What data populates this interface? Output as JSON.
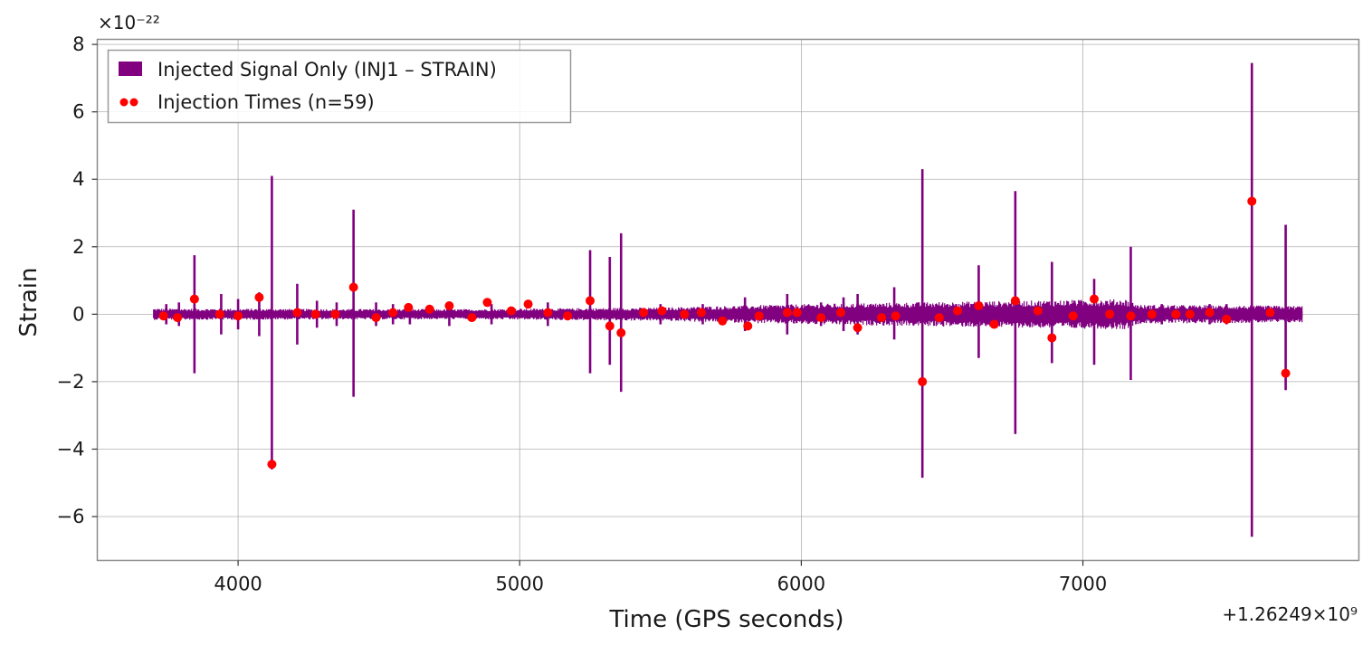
{
  "chart_data": {
    "type": "line",
    "xlabel": "Time (GPS seconds)",
    "ylabel": "Strain",
    "x_offset_label": "+1.26249×10⁹",
    "y_scale_label": "×10⁻²²",
    "xlim": [
      3500,
      7980
    ],
    "ylim": [
      -7.3,
      8.15
    ],
    "x_ticks": [
      4000,
      5000,
      6000,
      7000
    ],
    "x_tick_labels": [
      "4000",
      "5000",
      "6000",
      "7000"
    ],
    "y_ticks": [
      -6,
      -4,
      -2,
      0,
      2,
      4,
      6,
      8
    ],
    "y_tick_labels": [
      "−6",
      "−4",
      "−2",
      "0",
      "2",
      "4",
      "6",
      "8"
    ],
    "grid": true,
    "legend": {
      "placement": "top-left",
      "entries": [
        "Injected Signal Only (INJ1 – STRAIN)",
        "Injection Times (n=59)"
      ]
    },
    "colors": {
      "signal": "#800080",
      "points": "#ff0000"
    },
    "series": [
      {
        "name": "Injected Signal Only (INJ1 – STRAIN)",
        "kind": "band",
        "x_start": 3700,
        "x_end": 7780,
        "band_envelope": [
          [
            3700,
            0.17
          ],
          [
            4800,
            0.15
          ],
          [
            5500,
            0.2
          ],
          [
            6000,
            0.3
          ],
          [
            6600,
            0.38
          ],
          [
            7150,
            0.45
          ],
          [
            7200,
            0.28
          ],
          [
            7780,
            0.25
          ]
        ],
        "spikes": [
          [
            3745,
            0.3,
            -0.3
          ],
          [
            3790,
            0.35,
            -0.35
          ],
          [
            3845,
            1.75,
            -1.75
          ],
          [
            3940,
            0.6,
            -0.6
          ],
          [
            4000,
            0.45,
            -0.45
          ],
          [
            4075,
            0.65,
            -0.65
          ],
          [
            4120,
            4.1,
            -4.6
          ],
          [
            4210,
            0.9,
            -0.9
          ],
          [
            4280,
            0.4,
            -0.4
          ],
          [
            4350,
            0.35,
            -0.35
          ],
          [
            4410,
            3.1,
            -2.45
          ],
          [
            4490,
            0.35,
            -0.35
          ],
          [
            4550,
            0.3,
            -0.3
          ],
          [
            4610,
            0.3,
            -0.3
          ],
          [
            4750,
            0.35,
            -0.35
          ],
          [
            4900,
            0.3,
            -0.3
          ],
          [
            5100,
            0.35,
            -0.35
          ],
          [
            5250,
            1.9,
            -1.75
          ],
          [
            5320,
            1.7,
            -1.5
          ],
          [
            5360,
            2.4,
            -2.3
          ],
          [
            5500,
            0.3,
            -0.3
          ],
          [
            5650,
            0.3,
            -0.3
          ],
          [
            5800,
            0.5,
            -0.5
          ],
          [
            5950,
            0.6,
            -0.6
          ],
          [
            6070,
            0.35,
            -0.35
          ],
          [
            6150,
            0.5,
            -0.5
          ],
          [
            6200,
            0.6,
            -0.6
          ],
          [
            6330,
            0.8,
            -0.75
          ],
          [
            6430,
            4.3,
            -4.85
          ],
          [
            6550,
            0.3,
            -0.3
          ],
          [
            6630,
            1.45,
            -1.3
          ],
          [
            6760,
            3.65,
            -3.55
          ],
          [
            6890,
            1.55,
            -1.45
          ],
          [
            6970,
            0.4,
            -0.4
          ],
          [
            7040,
            1.05,
            -1.5
          ],
          [
            7170,
            2.0,
            -1.95
          ],
          [
            7280,
            0.3,
            -0.3
          ],
          [
            7450,
            0.3,
            -0.3
          ],
          [
            7510,
            0.3,
            -0.3
          ],
          [
            7600,
            7.45,
            -6.6
          ],
          [
            7720,
            2.65,
            -2.25
          ]
        ]
      },
      {
        "name": "Injection Times (n=59)",
        "kind": "scatter",
        "points": [
          [
            3735,
            -0.05
          ],
          [
            3785,
            -0.1
          ],
          [
            3845,
            0.45
          ],
          [
            3935,
            0.0
          ],
          [
            4000,
            -0.05
          ],
          [
            4075,
            0.5
          ],
          [
            4120,
            -4.45
          ],
          [
            4210,
            0.05
          ],
          [
            4275,
            0.0
          ],
          [
            4345,
            0.0
          ],
          [
            4410,
            0.8
          ],
          [
            4490,
            -0.1
          ],
          [
            4550,
            0.05
          ],
          [
            4605,
            0.2
          ],
          [
            4680,
            0.15
          ],
          [
            4750,
            0.25
          ],
          [
            4830,
            -0.1
          ],
          [
            4885,
            0.35
          ],
          [
            4970,
            0.1
          ],
          [
            5030,
            0.3
          ],
          [
            5100,
            0.05
          ],
          [
            5170,
            -0.05
          ],
          [
            5250,
            0.4
          ],
          [
            5320,
            -0.35
          ],
          [
            5360,
            -0.55
          ],
          [
            5440,
            0.05
          ],
          [
            5505,
            0.1
          ],
          [
            5585,
            0.0
          ],
          [
            5645,
            0.05
          ],
          [
            5720,
            -0.2
          ],
          [
            5810,
            -0.35
          ],
          [
            5850,
            -0.05
          ],
          [
            5950,
            0.05
          ],
          [
            5985,
            0.05
          ],
          [
            6070,
            -0.1
          ],
          [
            6140,
            0.05
          ],
          [
            6200,
            -0.4
          ],
          [
            6285,
            -0.1
          ],
          [
            6335,
            -0.05
          ],
          [
            6430,
            -2.0
          ],
          [
            6490,
            -0.1
          ],
          [
            6555,
            0.1
          ],
          [
            6630,
            0.25
          ],
          [
            6685,
            -0.3
          ],
          [
            6760,
            0.4
          ],
          [
            6840,
            0.1
          ],
          [
            6890,
            -0.7
          ],
          [
            6965,
            -0.05
          ],
          [
            7040,
            0.45
          ],
          [
            7095,
            0.0
          ],
          [
            7170,
            -0.05
          ],
          [
            7245,
            0.0
          ],
          [
            7330,
            0.0
          ],
          [
            7380,
            0.0
          ],
          [
            7450,
            0.05
          ],
          [
            7510,
            -0.15
          ],
          [
            7600,
            3.35
          ],
          [
            7665,
            0.05
          ],
          [
            7720,
            -1.75
          ]
        ]
      }
    ]
  }
}
